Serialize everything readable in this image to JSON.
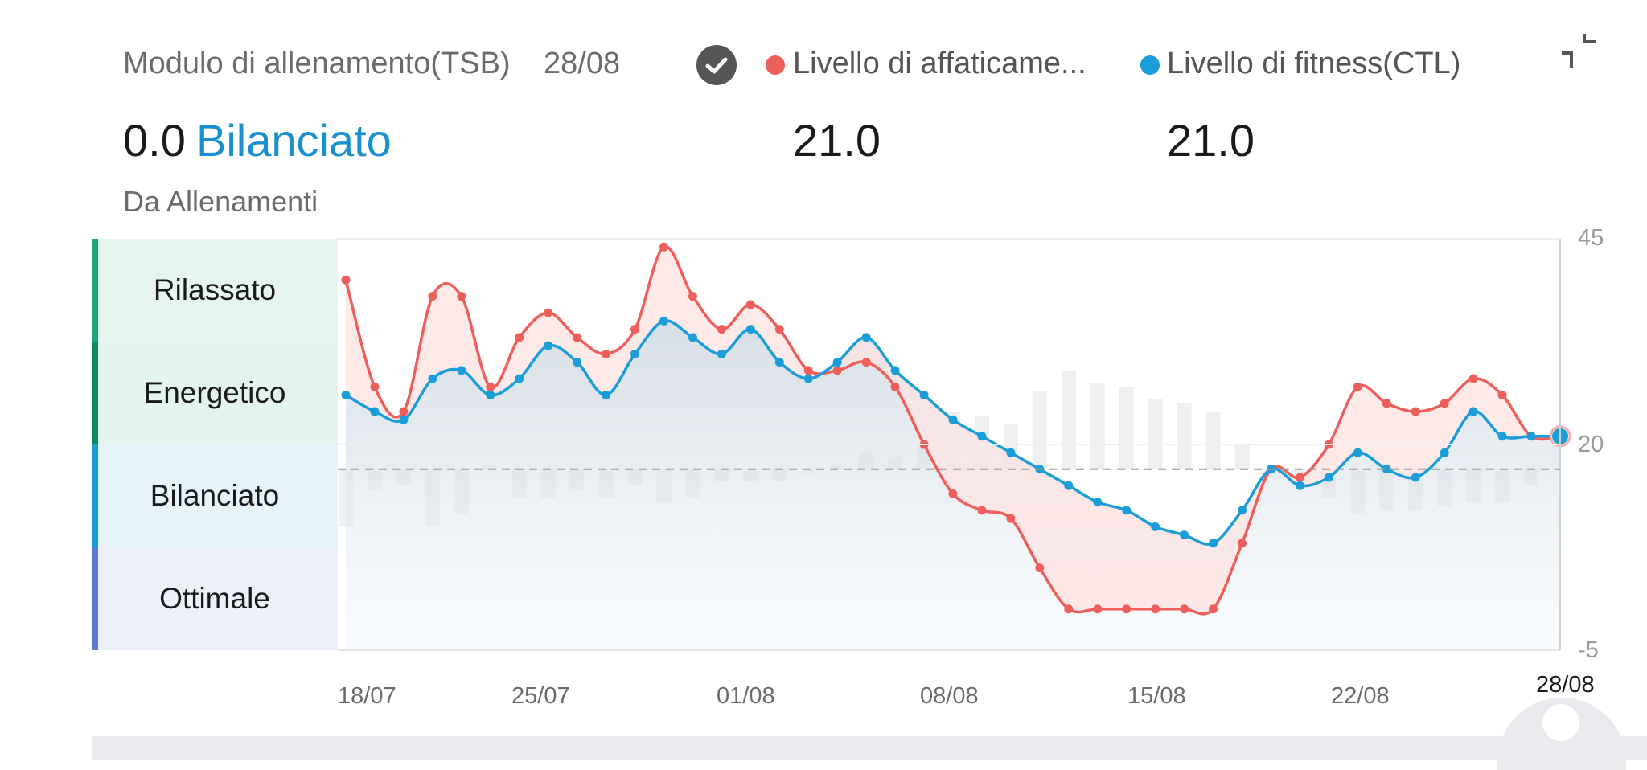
{
  "header": {
    "title": "Modulo di allenamento(TSB)",
    "date": "28/08",
    "tsb_value": "0.0",
    "tsb_status": "Bilanciato",
    "source": "Da Allenamenti",
    "legend": [
      {
        "label": "Livello di affaticame...",
        "color": "#EE5F5B",
        "value": "21.0"
      },
      {
        "label": "Livello di fitness(CTL)",
        "color": "#1A9DD9",
        "value": "21.0"
      }
    ]
  },
  "icons": {
    "check": "check-circle-icon",
    "collapse": "collapse-icon"
  },
  "zones": [
    {
      "label": "Rilassato",
      "bg": "#E6F6EF",
      "bar": "#18A86F"
    },
    {
      "label": "Energetico",
      "bg": "#E3F3EE",
      "bar": "#0E8A60"
    },
    {
      "label": "Bilanciato",
      "bg": "#E6F3FA",
      "bar": "#1A9DD9"
    },
    {
      "label": "Ottimale",
      "bg": "#ECF0FA",
      "bar": "#5B78D3"
    }
  ],
  "chart_data": {
    "type": "line",
    "x": [
      "17/07",
      "18/07",
      "19/07",
      "20/07",
      "21/07",
      "22/07",
      "23/07",
      "24/07",
      "25/07",
      "26/07",
      "27/07",
      "28/07",
      "29/07",
      "30/07",
      "31/07",
      "01/08",
      "02/08",
      "03/08",
      "04/08",
      "05/08",
      "06/08",
      "07/08",
      "08/08",
      "09/08",
      "10/08",
      "11/08",
      "12/08",
      "13/08",
      "14/08",
      "15/08",
      "16/08",
      "17/08",
      "18/08",
      "19/08",
      "20/08",
      "21/08",
      "22/08",
      "23/08",
      "24/08",
      "25/08",
      "26/08",
      "27/08",
      "28/08"
    ],
    "x_tick_labels": [
      "18/07",
      "25/07",
      "01/08",
      "08/08",
      "15/08",
      "22/08",
      "28/08"
    ],
    "series": [
      {
        "name": "Livello di affaticame...",
        "color": "#EE5F5B",
        "values": [
          40,
          27,
          24,
          38,
          38,
          27,
          33,
          36,
          33,
          31,
          34,
          44,
          38,
          34,
          37,
          34,
          29,
          29,
          30,
          27,
          20,
          14,
          12,
          11,
          5,
          0,
          0,
          0,
          0,
          0,
          0,
          8,
          17,
          16,
          20,
          27,
          25,
          24,
          25,
          28,
          26,
          21,
          21
        ]
      },
      {
        "name": "Livello di fitness(CTL)",
        "color": "#1A9DD9",
        "values": [
          26,
          24,
          23,
          28,
          29,
          26,
          28,
          32,
          30,
          26,
          31,
          35,
          33,
          31,
          34,
          30,
          28,
          30,
          33,
          29,
          26,
          23,
          21,
          19,
          17,
          15,
          13,
          12,
          10,
          9,
          8,
          12,
          17,
          15,
          16,
          19,
          17,
          16,
          19,
          24,
          21,
          21,
          21
        ]
      },
      {
        "name": "",
        "type": "bar",
        "values": [
          -14,
          -5,
          -4,
          -14,
          -11,
          1,
          -7,
          -7,
          -5,
          -7,
          -4,
          -8,
          -7,
          -3,
          -3,
          -3,
          -1,
          1,
          4,
          3,
          6,
          14,
          13,
          11,
          19,
          24,
          21,
          20,
          17,
          16,
          14,
          6,
          -1,
          -1,
          -7,
          -11,
          -10,
          -10,
          -9,
          -8,
          -8,
          -4,
          0
        ]
      }
    ],
    "ylim": [
      -5,
      45
    ],
    "y_tick_labels": [
      "45",
      "20",
      "-5"
    ],
    "reference_line": 17,
    "grid": false,
    "legend": "top"
  }
}
